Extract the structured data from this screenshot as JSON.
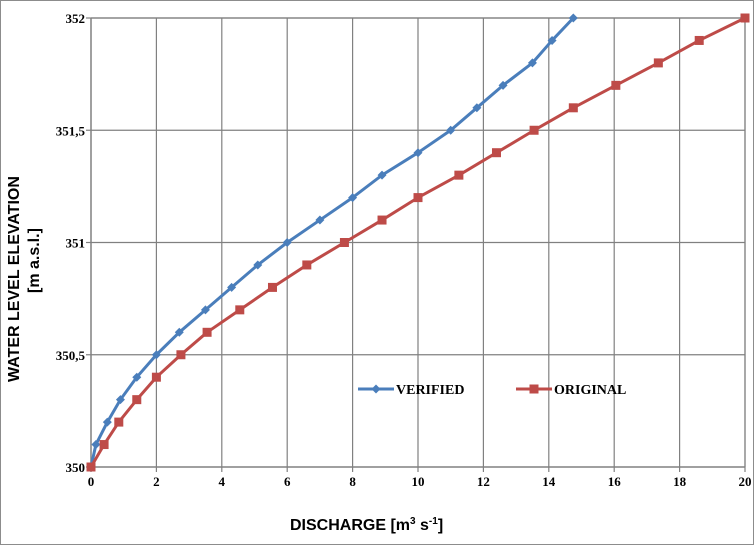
{
  "chart_data": {
    "type": "line",
    "title": "",
    "ylabel_line1": "WATER LEVEL ELEVATION",
    "ylabel_line2": "[m a.s.l.]",
    "xlabel_main": "DISCHARGE [m",
    "xlabel_exp1": "3",
    "xlabel_mid": " s",
    "xlabel_exp2": "-1",
    "xlabel_end": "]",
    "xlim": [
      0,
      20
    ],
    "ylim": [
      350,
      352
    ],
    "x_ticks": [
      0,
      2,
      4,
      6,
      8,
      10,
      12,
      14,
      16,
      18,
      20
    ],
    "x_tick_labels": [
      "0",
      "2",
      "4",
      "6",
      "8",
      "10",
      "12",
      "14",
      "16",
      "18",
      "20"
    ],
    "y_ticks": [
      350,
      350.5,
      351,
      351.5,
      352
    ],
    "y_tick_labels": [
      "350",
      "350,5",
      "351",
      "351,5",
      "352"
    ],
    "grid": true,
    "legend_position": "center-right inside plot",
    "series": [
      {
        "name": "VERIFIED",
        "color": "#4a7ebb",
        "marker": "diamond",
        "x": [
          0,
          0.15,
          0.5,
          0.9,
          1.4,
          2.0,
          2.7,
          3.5,
          4.3,
          5.1,
          6.0,
          7.0,
          8.0,
          8.9,
          10.0,
          11.0,
          11.8,
          12.6,
          13.5,
          14.1,
          14.75
        ],
        "y": [
          350.0,
          350.1,
          350.2,
          350.3,
          350.4,
          350.5,
          350.6,
          350.7,
          350.8,
          350.9,
          351.0,
          351.1,
          351.2,
          351.3,
          351.4,
          351.5,
          351.6,
          351.7,
          351.8,
          351.9,
          352.0
        ]
      },
      {
        "name": "ORIGINAL",
        "color": "#be4b48",
        "marker": "square",
        "x": [
          0,
          0.4,
          0.85,
          1.4,
          2.0,
          2.75,
          3.55,
          4.55,
          5.55,
          6.6,
          7.75,
          8.9,
          10.0,
          11.25,
          12.4,
          13.55,
          14.75,
          16.05,
          17.35,
          18.6,
          20.0
        ],
        "y": [
          350.0,
          350.1,
          350.2,
          350.3,
          350.4,
          350.5,
          350.6,
          350.7,
          350.8,
          350.9,
          351.0,
          351.1,
          351.2,
          351.3,
          351.4,
          351.5,
          351.6,
          351.7,
          351.8,
          351.9,
          352.0
        ]
      }
    ]
  }
}
